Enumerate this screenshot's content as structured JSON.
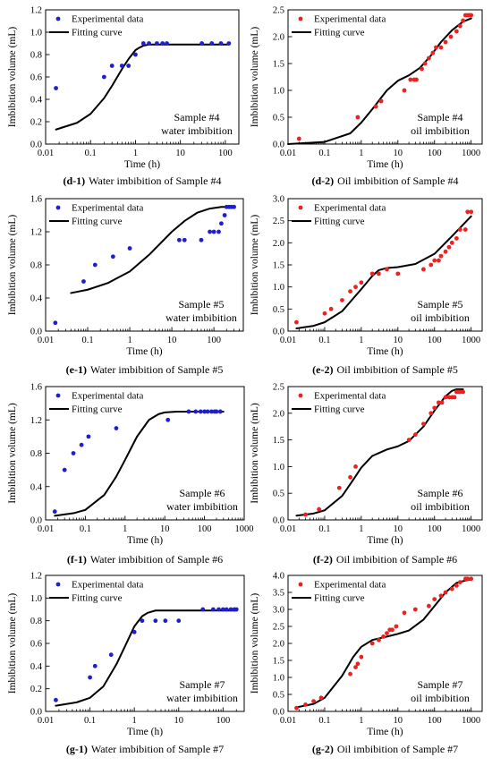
{
  "charts": [
    {
      "id": "d1",
      "type": "scatter",
      "caption_id": "(d-1)",
      "caption_text": "Water imbibition of Sample #4",
      "note_lines": [
        "Sample #4",
        "water imbibition"
      ],
      "xlabel": "Time (h)",
      "ylabel": "Imbibition volume (mL)",
      "x_log": true,
      "xlim": [
        0.01,
        200
      ],
      "ylim": [
        0,
        1.2
      ],
      "xticks": [
        0.01,
        0.1,
        1,
        10,
        100
      ],
      "xtick_labels": [
        "0.01",
        "0.1",
        "1",
        "10",
        "100"
      ],
      "yticks": [
        0,
        0.2,
        0.4,
        0.6,
        0.8,
        1.0,
        1.2
      ],
      "ytick_labels": [
        "0.0",
        "0.2",
        "0.4",
        "0.6",
        "0.8",
        "1.0",
        "1.2"
      ],
      "marker_color": "#1f1fd0",
      "legend": [
        "Experimental data",
        "Fitting curve"
      ],
      "experimental": {
        "x": [
          0.017,
          0.2,
          0.3,
          0.5,
          0.7,
          1.0,
          1.5,
          2,
          3,
          4,
          5,
          30,
          50,
          80,
          120
        ],
        "y": [
          0.5,
          0.6,
          0.7,
          0.7,
          0.7,
          0.8,
          0.9,
          0.9,
          0.9,
          0.9,
          0.9,
          0.9,
          0.9,
          0.9,
          0.9
        ]
      },
      "fitting": {
        "x": [
          0.017,
          0.05,
          0.1,
          0.2,
          0.3,
          0.5,
          0.7,
          1.0,
          1.2,
          1.5,
          2,
          3,
          10,
          120
        ],
        "y": [
          0.13,
          0.19,
          0.27,
          0.41,
          0.52,
          0.67,
          0.76,
          0.84,
          0.86,
          0.88,
          0.89,
          0.89,
          0.89,
          0.89
        ]
      }
    },
    {
      "id": "d2",
      "type": "scatter",
      "caption_id": "(d-2)",
      "caption_text": "Oil imbibition of Sample #4",
      "note_lines": [
        "Sample #4",
        "oil imbibition"
      ],
      "xlabel": "Time (h)",
      "ylabel": "Imbibition volume (mL)",
      "x_log": true,
      "xlim": [
        0.01,
        2000
      ],
      "ylim": [
        0,
        2.5
      ],
      "xticks": [
        0.01,
        0.1,
        1,
        10,
        100,
        1000
      ],
      "xtick_labels": [
        "0.01",
        "0.1",
        "1",
        "10",
        "100",
        "1000"
      ],
      "yticks": [
        0,
        0.5,
        1.0,
        1.5,
        2.0,
        2.5
      ],
      "ytick_labels": [
        "0.0",
        "0.5",
        "1.0",
        "1.5",
        "2.0",
        "2.5"
      ],
      "marker_color": "#ee2020",
      "legend": [
        "Experimental data",
        "Fitting curve"
      ],
      "experimental": {
        "x": [
          0.02,
          0.8,
          2.5,
          3.5,
          15,
          22,
          28,
          32,
          45,
          55,
          70,
          90,
          110,
          150,
          200,
          280,
          400,
          500,
          600,
          700,
          800,
          900,
          1000
        ],
        "y": [
          0.1,
          0.5,
          0.7,
          0.8,
          1.0,
          1.2,
          1.2,
          1.2,
          1.4,
          1.5,
          1.6,
          1.7,
          1.8,
          1.8,
          1.9,
          2.0,
          2.1,
          2.2,
          2.3,
          2.4,
          2.4,
          2.4,
          2.4
        ]
      },
      "fitting": {
        "x": [
          0.01,
          0.1,
          0.5,
          1,
          2,
          5,
          10,
          20,
          40,
          80,
          150,
          300,
          600,
          1000
        ],
        "y": [
          0.0,
          0.04,
          0.2,
          0.4,
          0.65,
          1.0,
          1.18,
          1.28,
          1.42,
          1.65,
          1.9,
          2.12,
          2.28,
          2.34
        ]
      }
    },
    {
      "id": "e1",
      "type": "scatter",
      "caption_id": "(e-1)",
      "caption_text": "Water imbibition of Sample #5",
      "note_lines": [
        "Sample #5",
        "water imbibition"
      ],
      "xlabel": "Time (h)",
      "ylabel": "Imbibition volume (mL)",
      "x_log": true,
      "xlim": [
        0.01,
        500
      ],
      "ylim": [
        0,
        1.6
      ],
      "xticks": [
        0.01,
        0.1,
        1,
        10,
        100
      ],
      "xtick_labels": [
        "0.01",
        "0.1",
        "1",
        "10",
        "100"
      ],
      "yticks": [
        0,
        0.4,
        0.8,
        1.2,
        1.6
      ],
      "ytick_labels": [
        "0.0",
        "0.4",
        "0.8",
        "1.2",
        "1.6"
      ],
      "marker_color": "#1f1fd0",
      "legend": [
        "Experimental data",
        "Fitting curve"
      ],
      "experimental": {
        "x": [
          0.017,
          0.08,
          0.15,
          0.4,
          1.0,
          15,
          20,
          50,
          80,
          100,
          130,
          150,
          180,
          200,
          230,
          260,
          300
        ],
        "y": [
          0.1,
          0.6,
          0.8,
          0.9,
          1.0,
          1.1,
          1.1,
          1.1,
          1.2,
          1.2,
          1.2,
          1.3,
          1.4,
          1.5,
          1.5,
          1.5,
          1.5
        ]
      },
      "fitting": {
        "x": [
          0.04,
          0.1,
          0.3,
          1,
          3,
          10,
          20,
          40,
          80,
          150,
          300
        ],
        "y": [
          0.46,
          0.5,
          0.58,
          0.72,
          0.93,
          1.2,
          1.33,
          1.43,
          1.48,
          1.5,
          1.5
        ]
      }
    },
    {
      "id": "e2",
      "type": "scatter",
      "caption_id": "(e-2)",
      "caption_text": "Oil imbibition of Sample #5",
      "note_lines": [
        "Sample #5",
        "oil imbibition"
      ],
      "xlabel": "Time (h)",
      "ylabel": "Imbibition volume (mL)",
      "x_log": true,
      "xlim": [
        0.01,
        2000
      ],
      "ylim": [
        0,
        3.0
      ],
      "xticks": [
        0.01,
        0.1,
        1,
        10,
        100,
        1000
      ],
      "xtick_labels": [
        "0.01",
        "0.1",
        "1",
        "10",
        "100",
        "1000"
      ],
      "yticks": [
        0,
        0.5,
        1.0,
        1.5,
        2.0,
        2.5,
        3.0
      ],
      "ytick_labels": [
        "0.0",
        "0.5",
        "1.0",
        "1.5",
        "2.0",
        "2.5",
        "3.0"
      ],
      "marker_color": "#ee2020",
      "legend": [
        "Experimental data",
        "Fitting curve"
      ],
      "experimental": {
        "x": [
          0.017,
          0.1,
          0.15,
          0.3,
          0.5,
          0.7,
          1.0,
          2.0,
          3.0,
          5.0,
          10,
          50,
          80,
          100,
          130,
          150,
          200,
          250,
          300,
          400,
          500,
          700,
          800,
          1000
        ],
        "y": [
          0.2,
          0.4,
          0.5,
          0.7,
          0.9,
          1.0,
          1.1,
          1.3,
          1.3,
          1.4,
          1.3,
          1.4,
          1.5,
          1.6,
          1.6,
          1.7,
          1.8,
          1.9,
          2.0,
          2.1,
          2.3,
          2.3,
          2.7,
          2.7
        ]
      },
      "fitting": {
        "x": [
          0.017,
          0.05,
          0.1,
          0.3,
          1,
          2,
          3,
          5,
          10,
          30,
          100,
          300,
          1000
        ],
        "y": [
          0.06,
          0.12,
          0.2,
          0.45,
          0.95,
          1.25,
          1.38,
          1.43,
          1.45,
          1.52,
          1.75,
          2.15,
          2.6
        ]
      }
    },
    {
      "id": "f1",
      "type": "scatter",
      "caption_id": "(f-1)",
      "caption_text": "Water imbibition of Sample #6",
      "note_lines": [
        "Sample #6",
        "water imbibition"
      ],
      "xlabel": "Time (h)",
      "ylabel": "Imbibition volume (mL)",
      "x_log": true,
      "xlim": [
        0.01,
        1000
      ],
      "ylim": [
        0,
        1.6
      ],
      "xticks": [
        0.01,
        0.1,
        1,
        10,
        100,
        1000
      ],
      "xtick_labels": [
        "0.01",
        "0.1",
        "1",
        "10",
        "100",
        "1000"
      ],
      "yticks": [
        0,
        0.4,
        0.8,
        1.2,
        1.6
      ],
      "ytick_labels": [
        "0.0",
        "0.4",
        "0.8",
        "1.2",
        "1.6"
      ],
      "marker_color": "#1f1fd0",
      "legend": [
        "Experimental data",
        "Fitting curve"
      ],
      "experimental": {
        "x": [
          0.017,
          0.03,
          0.05,
          0.08,
          0.12,
          0.6,
          12,
          40,
          60,
          80,
          100,
          120,
          150,
          180,
          200,
          250
        ],
        "y": [
          0.1,
          0.6,
          0.8,
          0.9,
          1.0,
          1.1,
          1.2,
          1.3,
          1.3,
          1.3,
          1.3,
          1.3,
          1.3,
          1.3,
          1.3,
          1.3
        ]
      },
      "fitting": {
        "x": [
          0.017,
          0.05,
          0.1,
          0.3,
          0.6,
          1,
          2,
          4,
          7,
          10,
          20,
          300
        ],
        "y": [
          0.05,
          0.08,
          0.12,
          0.3,
          0.52,
          0.72,
          1.0,
          1.2,
          1.27,
          1.29,
          1.3,
          1.3
        ]
      }
    },
    {
      "id": "f2",
      "type": "scatter",
      "caption_id": "(f-2)",
      "caption_text": "Oil imbibition of Sample #6",
      "note_lines": [
        "Sample #6",
        "oil imbibition"
      ],
      "xlabel": "Time (h)",
      "ylabel": "Imbibition volume (mL)",
      "x_log": true,
      "xlim": [
        0.01,
        2000
      ],
      "ylim": [
        0,
        2.5
      ],
      "xticks": [
        0.01,
        0.1,
        1,
        10,
        100,
        1000
      ],
      "xtick_labels": [
        "0.01",
        "0.1",
        "1",
        "10",
        "100",
        "1000"
      ],
      "yticks": [
        0,
        0.5,
        1.0,
        1.5,
        2.0,
        2.5
      ],
      "ytick_labels": [
        "0.0",
        "0.5",
        "1.0",
        "1.5",
        "2.0",
        "2.5"
      ],
      "marker_color": "#ee2020",
      "legend": [
        "Experimental data",
        "Fitting curve"
      ],
      "experimental": {
        "x": [
          0.03,
          0.07,
          0.25,
          0.5,
          0.7,
          20,
          30,
          50,
          80,
          100,
          130,
          160,
          200,
          250,
          300,
          350,
          400,
          450,
          500,
          600
        ],
        "y": [
          0.1,
          0.2,
          0.6,
          0.8,
          1.0,
          1.5,
          1.6,
          1.8,
          2.0,
          2.1,
          2.2,
          2.2,
          2.3,
          2.3,
          2.3,
          2.3,
          2.4,
          2.4,
          2.4,
          2.4
        ]
      },
      "fitting": {
        "x": [
          0.017,
          0.05,
          0.1,
          0.3,
          0.6,
          1,
          2,
          5,
          10,
          20,
          50,
          100,
          200,
          300,
          400,
          600
        ],
        "y": [
          0.08,
          0.12,
          0.18,
          0.45,
          0.75,
          0.98,
          1.2,
          1.32,
          1.38,
          1.48,
          1.75,
          2.05,
          2.32,
          2.42,
          2.45,
          2.45
        ]
      }
    },
    {
      "id": "g1",
      "type": "scatter",
      "caption_id": "(g-1)",
      "caption_text": "Water imbibition of Sample #7",
      "note_lines": [
        "Sample #7",
        "water imbibition"
      ],
      "xlabel": "Time (h)",
      "ylabel": "Imbibition volume (mL)",
      "x_log": true,
      "xlim": [
        0.01,
        300
      ],
      "ylim": [
        0,
        1.2
      ],
      "xticks": [
        0.01,
        0.1,
        1,
        10,
        100
      ],
      "xtick_labels": [
        "0.01",
        "0.1",
        "1",
        "10",
        "100"
      ],
      "yticks": [
        0,
        0.2,
        0.4,
        0.6,
        0.8,
        1.0,
        1.2
      ],
      "ytick_labels": [
        "0.0",
        "0.2",
        "0.4",
        "0.6",
        "0.8",
        "1.0",
        "1.2"
      ],
      "marker_color": "#1f1fd0",
      "legend": [
        "Experimental data",
        "Fitting curve"
      ],
      "experimental": {
        "x": [
          0.017,
          0.1,
          0.13,
          0.3,
          1.0,
          1.5,
          3.0,
          5.0,
          10,
          35,
          60,
          80,
          100,
          120,
          150,
          180,
          200
        ],
        "y": [
          0.1,
          0.3,
          0.4,
          0.5,
          0.7,
          0.8,
          0.8,
          0.8,
          0.8,
          0.9,
          0.9,
          0.9,
          0.9,
          0.9,
          0.9,
          0.9,
          0.9
        ]
      },
      "fitting": {
        "x": [
          0.017,
          0.05,
          0.1,
          0.2,
          0.4,
          0.7,
          1.0,
          1.5,
          2,
          3,
          5,
          200
        ],
        "y": [
          0.05,
          0.08,
          0.12,
          0.22,
          0.42,
          0.62,
          0.75,
          0.84,
          0.87,
          0.89,
          0.89,
          0.89
        ]
      }
    },
    {
      "id": "g2",
      "type": "scatter",
      "caption_id": "(g-2)",
      "caption_text": "Oil imbibition of Sample #7",
      "note_lines": [
        "Sample #7",
        "oil imbibition"
      ],
      "xlabel": "Time (h)",
      "ylabel": "Imbibition volume (mL)",
      "x_log": true,
      "xlim": [
        0.01,
        2000
      ],
      "ylim": [
        0,
        4.0
      ],
      "xticks": [
        0.01,
        0.1,
        1,
        10,
        100,
        1000
      ],
      "xtick_labels": [
        "0.01",
        "0.1",
        "1",
        "10",
        "100",
        "1000"
      ],
      "yticks": [
        0,
        0.5,
        1.0,
        1.5,
        2.0,
        2.5,
        3.0,
        3.5,
        4.0
      ],
      "ytick_labels": [
        "0.0",
        "0.5",
        "1.0",
        "1.5",
        "2.0",
        "2.5",
        "3.0",
        "3.5",
        "4.0"
      ],
      "marker_color": "#ee2020",
      "legend": [
        "Experimental data",
        "Fitting curve"
      ],
      "experimental": {
        "x": [
          0.017,
          0.03,
          0.05,
          0.08,
          0.5,
          0.7,
          0.8,
          1.0,
          2.0,
          3.0,
          4.0,
          5.0,
          6.0,
          7.0,
          9.0,
          15,
          30,
          70,
          100,
          150,
          200,
          300,
          400,
          500,
          700,
          800,
          1000
        ],
        "y": [
          0.1,
          0.2,
          0.3,
          0.4,
          1.1,
          1.3,
          1.4,
          1.6,
          2.0,
          2.1,
          2.2,
          2.3,
          2.4,
          2.4,
          2.5,
          2.9,
          3.0,
          3.1,
          3.3,
          3.4,
          3.5,
          3.6,
          3.7,
          3.8,
          3.9,
          3.9,
          3.9
        ]
      },
      "fitting": {
        "x": [
          0.017,
          0.05,
          0.1,
          0.3,
          0.6,
          1,
          2,
          5,
          10,
          20,
          50,
          100,
          200,
          400,
          700,
          1000
        ],
        "y": [
          0.12,
          0.22,
          0.4,
          1.05,
          1.6,
          1.9,
          2.1,
          2.2,
          2.28,
          2.38,
          2.7,
          3.1,
          3.5,
          3.78,
          3.85,
          3.88
        ]
      }
    }
  ]
}
